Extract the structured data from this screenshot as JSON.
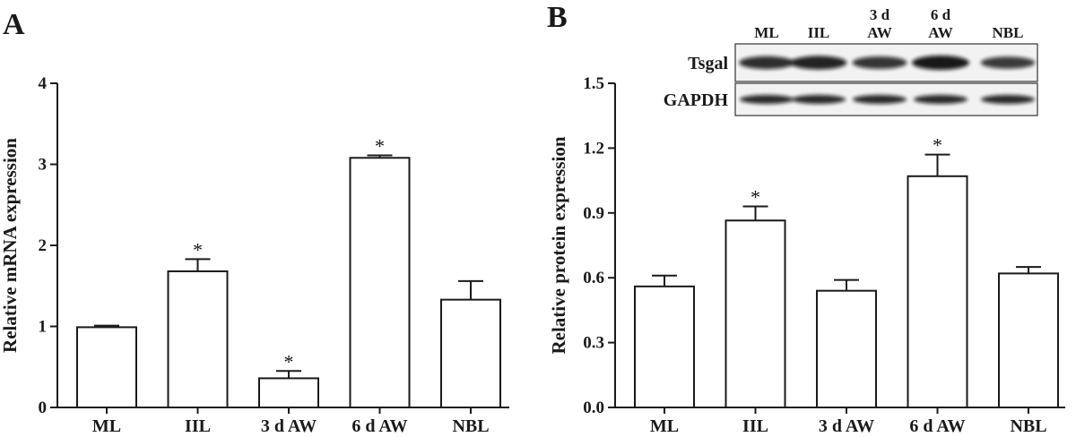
{
  "panels": {
    "a_letter": "A",
    "b_letter": "B"
  },
  "blot": {
    "lanes": [
      "ML",
      "IIL",
      "3 d\nAW",
      "6 d\nAW",
      "NBL"
    ],
    "rows": [
      "Tsgal",
      "GAPDH"
    ],
    "tsgal_intensity": [
      0.8,
      0.9,
      0.75,
      1.0,
      0.7
    ],
    "gapdh_intensity": [
      0.85,
      0.85,
      0.85,
      0.85,
      0.85
    ]
  },
  "chart_data": [
    {
      "panel": "A",
      "type": "bar",
      "categories": [
        "ML",
        "IIL",
        "3 d AW",
        "6 d AW",
        "NBL"
      ],
      "values": [
        0.99,
        1.68,
        0.36,
        3.08,
        1.33
      ],
      "errors": [
        0.02,
        0.15,
        0.09,
        0.03,
        0.23
      ],
      "significance": [
        "",
        "*",
        "*",
        "*",
        ""
      ],
      "ylabel": "Relative  mRNA expression",
      "xlabel": "",
      "ylim": [
        0,
        4
      ],
      "yticks": [
        "0",
        "1",
        "2",
        "3",
        "4"
      ],
      "bar_color": "#ffffff",
      "edge_color": "#1a1a1a"
    },
    {
      "panel": "B",
      "type": "bar",
      "categories": [
        "ML",
        "IIL",
        "3 d AW",
        "6 d AW",
        "NBL"
      ],
      "values": [
        0.56,
        0.865,
        0.54,
        1.07,
        0.62
      ],
      "errors": [
        0.05,
        0.065,
        0.05,
        0.1,
        0.03
      ],
      "significance": [
        "",
        "*",
        "",
        "*",
        ""
      ],
      "ylabel": "Relative protein expression",
      "xlabel": "",
      "ylim": [
        0,
        1.5
      ],
      "yticks": [
        "0.0",
        "0.3",
        "0.6",
        "0.9",
        "1.2",
        "1.5"
      ],
      "bar_color": "#ffffff",
      "edge_color": "#1a1a1a"
    }
  ]
}
